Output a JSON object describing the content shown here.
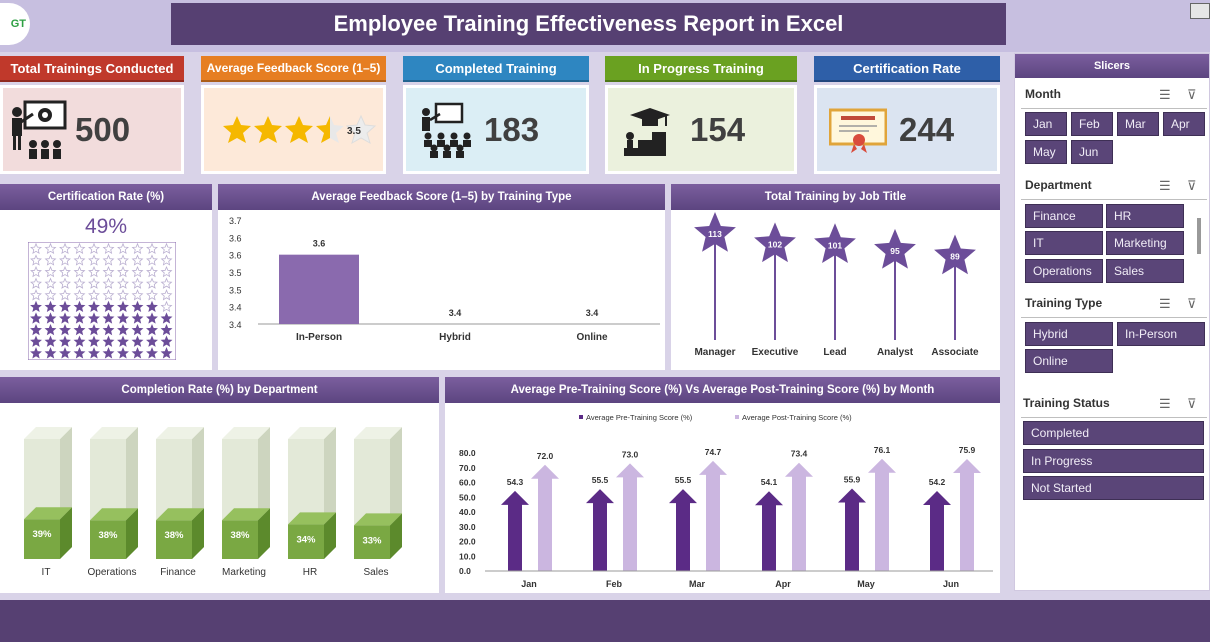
{
  "header": {
    "title": "Employee Training Effectiveness Report in Excel",
    "logo_text": "GT"
  },
  "kpis": [
    {
      "label": "Total Trainings Conducted",
      "value": "500",
      "head_color": "#c0392b",
      "body_color": "#f2dcdc",
      "icon": "training-presenter-icon"
    },
    {
      "label": "Average Feedback Score (1–5)",
      "value": "3.5",
      "head_color": "#e67e22",
      "body_color": "#fde9d9",
      "icon": "star-rating-icon",
      "rating": 3.5
    },
    {
      "label": "Completed Training",
      "value": "183",
      "head_color": "#2e86c1",
      "body_color": "#dbeef5",
      "icon": "classroom-icon"
    },
    {
      "label": "In Progress Training",
      "value": "154",
      "head_color": "#6aa121",
      "body_color": "#ebf1dd",
      "icon": "graduation-steps-icon"
    },
    {
      "label": "Certification Rate",
      "value": "244",
      "head_color": "#2e5fa8",
      "body_color": "#dbe4f1",
      "icon": "certificate-icon"
    }
  ],
  "panels": {
    "cert_rate": {
      "title": "Certification Rate (%)",
      "value": "49%",
      "filled": 49
    },
    "feedback": {
      "title": "Average Feedback Score (1–5) by Training Type"
    },
    "jobtitle": {
      "title": "Total Training by Job Title"
    },
    "completion": {
      "title": "Completion Rate (%) by Department"
    },
    "prepost": {
      "title": "Average Pre-Training Score (%) Vs Average Post-Training Score (%) by Month"
    }
  },
  "chart_data": [
    {
      "type": "bar",
      "title": "Average Feedback Score (1–5) by Training Type",
      "categories": [
        "In-Person",
        "Hybrid",
        "Online"
      ],
      "values": [
        3.6,
        3.4,
        3.4
      ],
      "labels": [
        "3.6",
        "3.4",
        "3.4"
      ],
      "ylim": [
        3.4,
        3.7
      ],
      "yticks": [
        "3.7",
        "3.6",
        "3.6",
        "3.5",
        "3.5",
        "3.4",
        "3.4"
      ],
      "grid": false
    },
    {
      "type": "lollipop",
      "title": "Total Training by Job Title",
      "categories": [
        "Manager",
        "Executive",
        "Lead",
        "Analyst",
        "Associate"
      ],
      "values": [
        113,
        102,
        101,
        95,
        89
      ]
    },
    {
      "type": "bar",
      "title": "Completion Rate (%) by Department",
      "categories": [
        "IT",
        "Operations",
        "Finance",
        "Marketing",
        "HR",
        "Sales"
      ],
      "values": [
        39,
        38,
        38,
        38,
        34,
        33
      ],
      "labels": [
        "39%",
        "38%",
        "38%",
        "38%",
        "34%",
        "33%"
      ]
    },
    {
      "type": "bar",
      "title": "Average Pre-Training Score (%) Vs Average Post-Training Score (%) by Month",
      "categories": [
        "Jan",
        "Feb",
        "Mar",
        "Apr",
        "May",
        "Jun"
      ],
      "series": [
        {
          "name": "Average Pre-Training Score (%)",
          "values": [
            54.3,
            55.5,
            55.5,
            54.1,
            55.9,
            54.2
          ],
          "labels": [
            "54.3",
            "55.5",
            "55.5",
            "54.1",
            "55.9",
            "54.2"
          ]
        },
        {
          "name": "Average Post-Training Score (%)",
          "values": [
            72.0,
            73.0,
            74.7,
            73.4,
            76.1,
            75.9
          ],
          "labels": [
            "72.0",
            "73.0",
            "74.7",
            "73.4",
            "76.1",
            "75.9"
          ]
        }
      ],
      "ylim": [
        0,
        80
      ],
      "yticks": [
        "80.0",
        "70.0",
        "60.0",
        "50.0",
        "40.0",
        "30.0",
        "20.0",
        "10.0",
        "0.0"
      ],
      "legend": "top"
    }
  ],
  "slicers": {
    "title": "Slicers",
    "groups": [
      {
        "title": "Month",
        "items": [
          "Jan",
          "Feb",
          "Mar",
          "Apr",
          "May",
          "Jun"
        ]
      },
      {
        "title": "Department",
        "items": [
          "Finance",
          "HR",
          "IT",
          "Marketing",
          "Operations",
          "Sales"
        ]
      },
      {
        "title": "Training Type",
        "items": [
          "Hybrid",
          "In-Person",
          "Online"
        ]
      },
      {
        "title": "Training Status",
        "items": [
          "Completed",
          "In Progress",
          "Not Started"
        ]
      }
    ]
  },
  "colors": {
    "purple_dark": "#564072",
    "purple_bar": "#8a6aae",
    "green_bar": "#7aa843"
  }
}
